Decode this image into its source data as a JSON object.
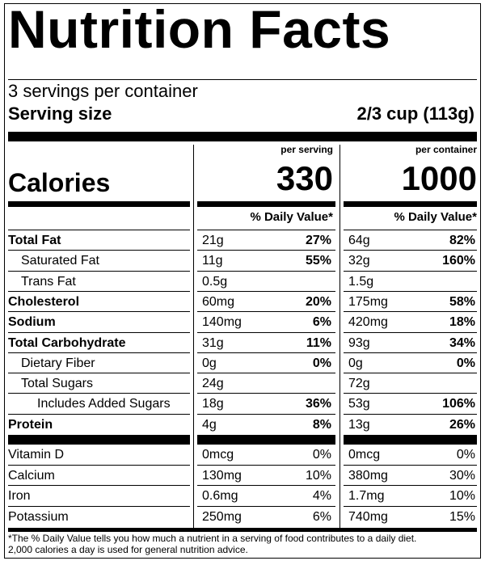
{
  "title": "Nutrition Facts",
  "servings_per_container": "3 servings per container",
  "serving_size_label": "Serving size",
  "serving_size_value": "2/3 cup (113g)",
  "calories_label": "Calories",
  "columns": {
    "per_serving_label": "per serving",
    "per_container_label": "per container",
    "per_serving_calories": "330",
    "per_container_calories": "1000",
    "daily_value_header": "% Daily Value*"
  },
  "nutrients": [
    {
      "name": "Total Fat",
      "bold": true,
      "indent": 0,
      "serving_amount": "21g",
      "serving_dv": "27%",
      "container_amount": "64g",
      "container_dv": "82%"
    },
    {
      "name": "Saturated Fat",
      "bold": false,
      "indent": 1,
      "serving_amount": "11g",
      "serving_dv": "55%",
      "container_amount": "32g",
      "container_dv": "160%"
    },
    {
      "name": "Trans Fat",
      "bold": false,
      "indent": 1,
      "serving_amount": "0.5g",
      "serving_dv": "",
      "container_amount": "1.5g",
      "container_dv": ""
    },
    {
      "name": "Cholesterol",
      "bold": true,
      "indent": 0,
      "serving_amount": "60mg",
      "serving_dv": "20%",
      "container_amount": "175mg",
      "container_dv": "58%"
    },
    {
      "name": "Sodium",
      "bold": true,
      "indent": 0,
      "serving_amount": "140mg",
      "serving_dv": "6%",
      "container_amount": "420mg",
      "container_dv": "18%"
    },
    {
      "name": "Total Carbohydrate",
      "bold": true,
      "indent": 0,
      "serving_amount": "31g",
      "serving_dv": "11%",
      "container_amount": "93g",
      "container_dv": "34%"
    },
    {
      "name": "Dietary Fiber",
      "bold": false,
      "indent": 1,
      "serving_amount": "0g",
      "serving_dv": "0%",
      "container_amount": "0g",
      "container_dv": "0%"
    },
    {
      "name": "Total Sugars",
      "bold": false,
      "indent": 1,
      "serving_amount": "24g",
      "serving_dv": "",
      "container_amount": "72g",
      "container_dv": ""
    },
    {
      "name": "Includes Added Sugars",
      "bold": false,
      "indent": 2,
      "serving_amount": "18g",
      "serving_dv": "36%",
      "container_amount": "53g",
      "container_dv": "106%"
    },
    {
      "name": "Protein",
      "bold": true,
      "indent": 0,
      "serving_amount": "4g",
      "serving_dv": "8%",
      "container_amount": "13g",
      "container_dv": "26%"
    }
  ],
  "vitamins": [
    {
      "name": "Vitamin D",
      "serving_amount": "0mcg",
      "serving_dv": "0%",
      "container_amount": "0mcg",
      "container_dv": "0%"
    },
    {
      "name": "Calcium",
      "serving_amount": "130mg",
      "serving_dv": "10%",
      "container_amount": "380mg",
      "container_dv": "30%"
    },
    {
      "name": "Iron",
      "serving_amount": "0.6mg",
      "serving_dv": "4%",
      "container_amount": "1.7mg",
      "container_dv": "10%"
    },
    {
      "name": "Potassium",
      "serving_amount": "250mg",
      "serving_dv": "6%",
      "container_amount": "740mg",
      "container_dv": "15%"
    }
  ],
  "footnote_line1": "*The % Daily Value tells you how much a nutrient in a serving of food contributes to a daily diet.",
  "footnote_line2": "2,000 calories a day is used for general nutrition advice."
}
